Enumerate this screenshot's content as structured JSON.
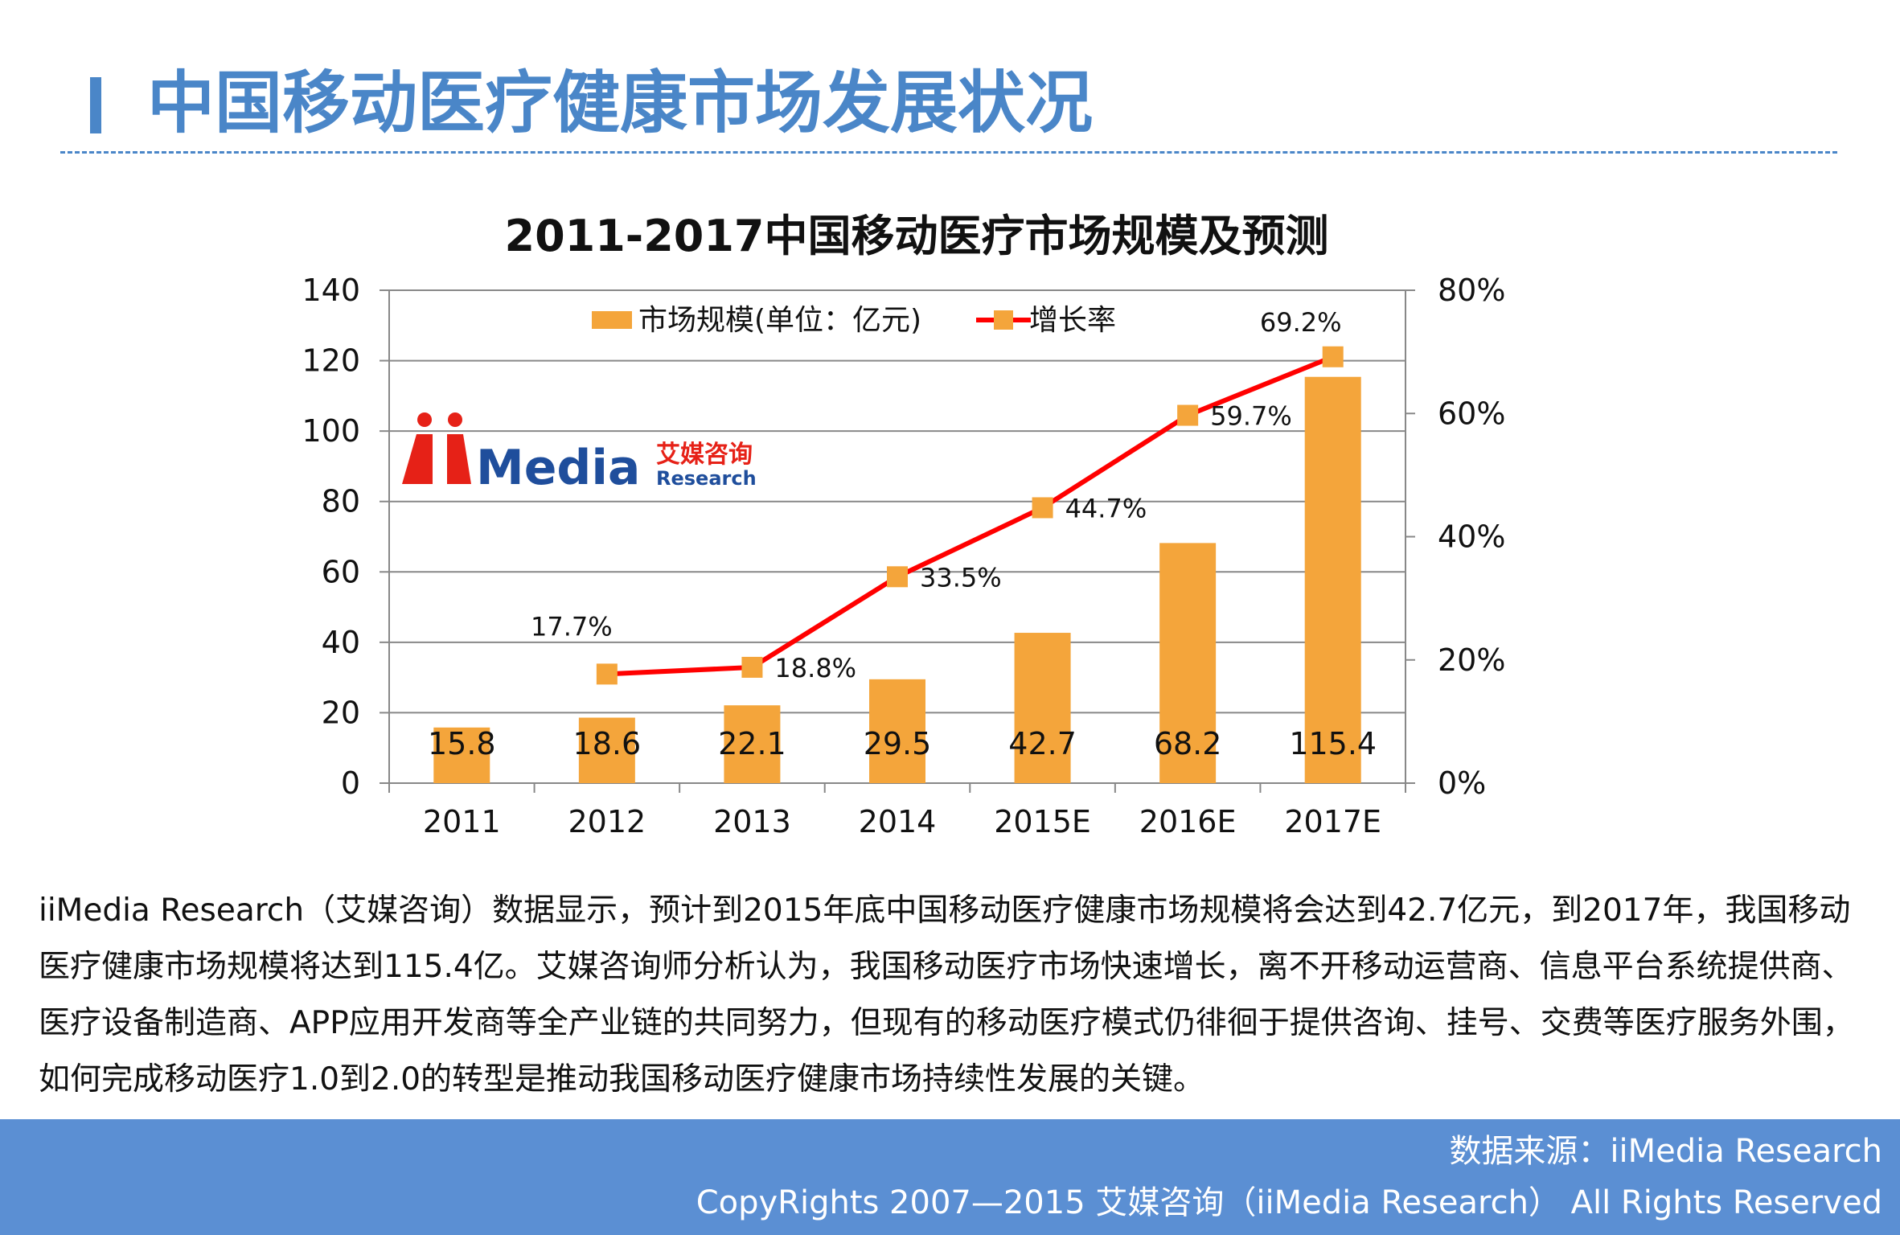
{
  "header": {
    "title": "中国移动医疗健康市场发展状况"
  },
  "logo": {
    "brand": "Media",
    "cn_name": "艾媒咨询",
    "en_name": "Research"
  },
  "chart_data": {
    "type": "bar",
    "title": "2011-2017中国移动医疗市场规模及预测",
    "categories": [
      "2011",
      "2012",
      "2013",
      "2014",
      "2015E",
      "2016E",
      "2017E"
    ],
    "series": [
      {
        "name": "市场规模(单位：亿元)",
        "type": "bar",
        "axis": "left",
        "values": [
          15.8,
          18.6,
          22.1,
          29.5,
          42.7,
          68.2,
          115.4
        ],
        "labels": [
          "15.8",
          "18.6",
          "22.1",
          "29.5",
          "42.7",
          "68.2",
          "115.4"
        ]
      },
      {
        "name": "增长率",
        "type": "line",
        "axis": "right",
        "values": [
          null,
          17.7,
          18.8,
          33.5,
          44.7,
          59.7,
          69.2
        ],
        "labels": [
          "",
          "17.7%",
          "18.8%",
          "33.5%",
          "44.7%",
          "59.7%",
          "69.2%"
        ]
      }
    ],
    "y_left": {
      "min": 0,
      "max": 140,
      "ticks": [
        "0",
        "20",
        "40",
        "60",
        "80",
        "100",
        "120",
        "140"
      ]
    },
    "y_right": {
      "min": 0,
      "max": 80,
      "ticks": [
        "0%",
        "20%",
        "40%",
        "60%",
        "80%"
      ]
    },
    "grid": true,
    "legend": "top",
    "colors": {
      "bar": "#f4a53b",
      "line": "#ff0000",
      "marker": "#f4a53b"
    }
  },
  "body": {
    "paragraph": "iiMedia Research（艾媒咨询）数据显示，预计到2015年底中国移动医疗健康市场规模将会达到42.7亿元，到2017年，我国移动医疗健康市场规模将达到115.4亿。艾媒咨询师分析认为，我国移动医疗市场快速增长，离不开移动运营商、信息平台系统提供商、医疗设备制造商、APP应用开发商等全产业链的共同努力，但现有的移动医疗模式仍徘徊于提供咨询、挂号、交费等医疗服务外围，如何完成移动医疗1.0到2.0的转型是推动我国移动医疗健康市场持续性发展的关键。"
  },
  "footer": {
    "source": "数据来源：iiMedia Research",
    "copyright": "CopyRights 2007—2015 艾媒咨询（iiMedia Research） All Rights Reserved"
  }
}
